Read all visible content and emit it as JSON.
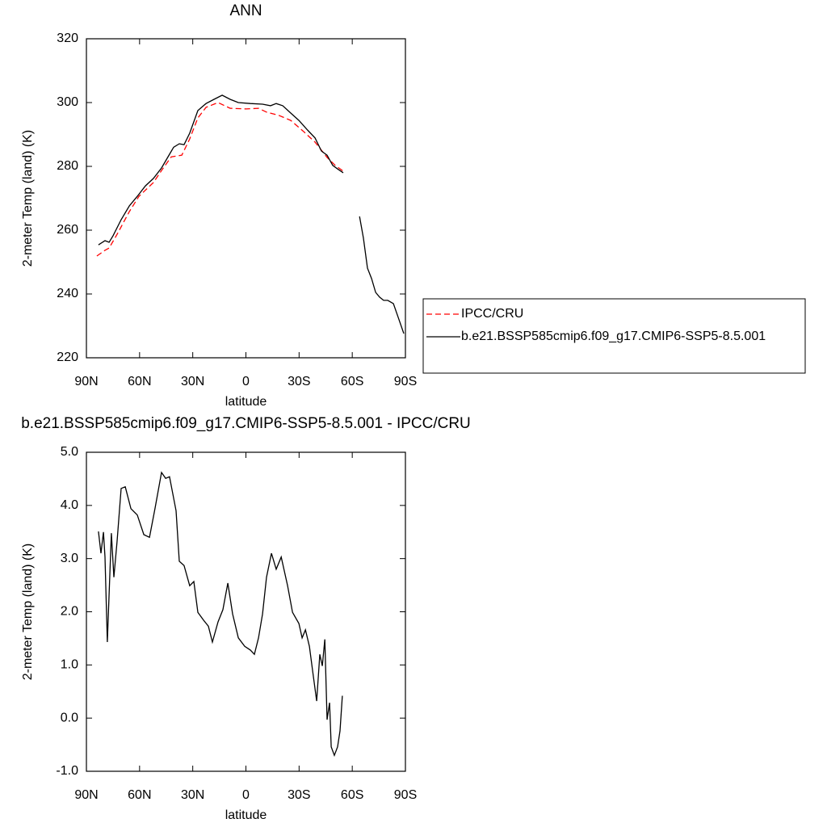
{
  "chart_data": [
    {
      "type": "line",
      "title": "ANN",
      "xlabel": "latitude",
      "ylabel": "2-meter Temp (land) (K)",
      "xlim": [
        90,
        -90
      ],
      "xticks": [
        {
          "value": 90,
          "label": "90N"
        },
        {
          "value": 60,
          "label": "60N"
        },
        {
          "value": 30,
          "label": "30N"
        },
        0,
        {
          "value": -30,
          "label": "30S"
        },
        {
          "value": -60,
          "label": "60S"
        },
        {
          "value": -90,
          "label": "90S"
        }
      ],
      "ylim": [
        220,
        320
      ],
      "yticks": [
        220,
        240,
        260,
        280,
        300,
        320
      ],
      "legend": "right",
      "series": [
        {
          "name": "IPCC/CRU",
          "color": "#ff0000",
          "line_style": "dashed",
          "x": [
            84.1,
            79.5,
            77.2,
            72.7,
            65.8,
            60.4,
            52.2,
            47.6,
            42.1,
            36.2,
            31.7,
            27.1,
            22.5,
            15.7,
            8.9,
            -0.2,
            -7.1,
            -11.6,
            -18.5,
            -25.3,
            -32.2,
            -39,
            -45.8,
            -50.4,
            -54.9
          ],
          "values": [
            251.9,
            253.7,
            254.4,
            258.7,
            265.8,
            270.6,
            274.9,
            278.7,
            283,
            283.5,
            288.6,
            295.2,
            298.5,
            300,
            298.2,
            298,
            298.2,
            297,
            296,
            294.4,
            291.1,
            287.6,
            282.8,
            280.3,
            278.5
          ]
        },
        {
          "name": "b.e21.BSSP585cmip6.f09_g17.CMIP6-SSP5-8.5.001",
          "color": "#000000",
          "line_style": "solid",
          "x": [
            83.2,
            79.5,
            77.2,
            75,
            70.4,
            65.8,
            61.3,
            56.7,
            52.2,
            47.6,
            43.1,
            40.8,
            37.6,
            34.9,
            31.7,
            27.1,
            22.5,
            18,
            13.4,
            8.9,
            4.3,
            -2.5,
            -9.4,
            -13.9,
            -17.1,
            -20.8,
            -25.3,
            -29.9,
            -34.4,
            -39,
            -42.6,
            -45.8,
            -49,
            -51.7,
            -54.9,
            -60,
            -64.1,
            -66.3,
            -68.6,
            -70.9,
            -73.2,
            -75.4,
            -77.7,
            -80,
            -83.2,
            -85.9,
            -89.1
          ],
          "values": [
            255.4,
            256.7,
            256.2,
            258.2,
            263.3,
            267.6,
            270.6,
            273.9,
            276.2,
            279.5,
            283.8,
            286,
            287.1,
            286.8,
            290.4,
            297.5,
            299.7,
            301,
            302.3,
            301,
            300,
            299.7,
            299.5,
            299,
            299.7,
            299,
            296.7,
            294.4,
            291.6,
            288.9,
            284.8,
            283.5,
            280.3,
            279.2,
            278,
            null,
            264.3,
            257.5,
            248.1,
            244.8,
            240.5,
            239,
            238,
            238,
            237,
            232.7,
            227.6
          ]
        }
      ]
    },
    {
      "type": "line",
      "title": "b.e21.BSSP585cmip6.f09_g17.CMIP6-SSP5-8.5.001 - IPCC/CRU",
      "xlabel": "latitude",
      "ylabel": "2-meter Temp (land) (K)",
      "xlim": [
        90,
        -90
      ],
      "xticks": [
        {
          "value": 90,
          "label": "90N"
        },
        {
          "value": 60,
          "label": "60N"
        },
        {
          "value": 30,
          "label": "30N"
        },
        0,
        {
          "value": -30,
          "label": "30S"
        },
        {
          "value": -60,
          "label": "60S"
        },
        {
          "value": -90,
          "label": "90S"
        }
      ],
      "ylim": [
        -1,
        5
      ],
      "yticks": [
        {
          "value": -1,
          "label": "-1.0"
        },
        {
          "value": 0,
          "label": "0.0"
        },
        {
          "value": 1,
          "label": "1.0"
        },
        {
          "value": 2,
          "label": "2.0"
        },
        {
          "value": 3,
          "label": "3.0"
        },
        {
          "value": 4,
          "label": "4.0"
        },
        {
          "value": 5,
          "label": "5.0"
        }
      ],
      "color": "#000000",
      "x": [
        83.2,
        81.8,
        80.4,
        79.5,
        78.2,
        75.9,
        74.5,
        72.7,
        70.4,
        68.1,
        64.9,
        61.3,
        57.6,
        54.4,
        51.3,
        47.6,
        45.3,
        43.1,
        39.4,
        37.6,
        34.9,
        31.7,
        29.4,
        27.1,
        23.9,
        21.2,
        18.9,
        15.7,
        13,
        10.2,
        7.5,
        4.3,
        0.7,
        -2.5,
        -4.8,
        -7.1,
        -9.4,
        -11.6,
        -14.4,
        -17.1,
        -19.9,
        -23.5,
        -26.3,
        -29.9,
        -31.7,
        -33.6,
        -35.8,
        -37.6,
        -39.9,
        -41.7,
        -43.1,
        -44.5,
        -45.8,
        -47.2,
        -48.1,
        -49.9,
        -51.7,
        -53.1,
        -54.4
      ],
      "values": [
        3.51,
        3.1,
        3.5,
        3.03,
        1.43,
        3.48,
        2.65,
        3.33,
        4.32,
        4.35,
        3.94,
        3.82,
        3.45,
        3.4,
        3.94,
        4.62,
        4.51,
        4.54,
        3.9,
        2.95,
        2.87,
        2.49,
        2.57,
        1.99,
        1.84,
        1.73,
        1.43,
        1.81,
        2.04,
        2.54,
        1.96,
        1.51,
        1.35,
        1.28,
        1.2,
        1.51,
        1.96,
        2.65,
        3.1,
        2.8,
        3.03,
        2.49,
        1.99,
        1.78,
        1.51,
        1.66,
        1.35,
        0.9,
        0.32,
        1.2,
        0.98,
        1.48,
        -0.03,
        0.29,
        -0.54,
        -0.7,
        -0.54,
        -0.24,
        0.42
      ]
    }
  ]
}
